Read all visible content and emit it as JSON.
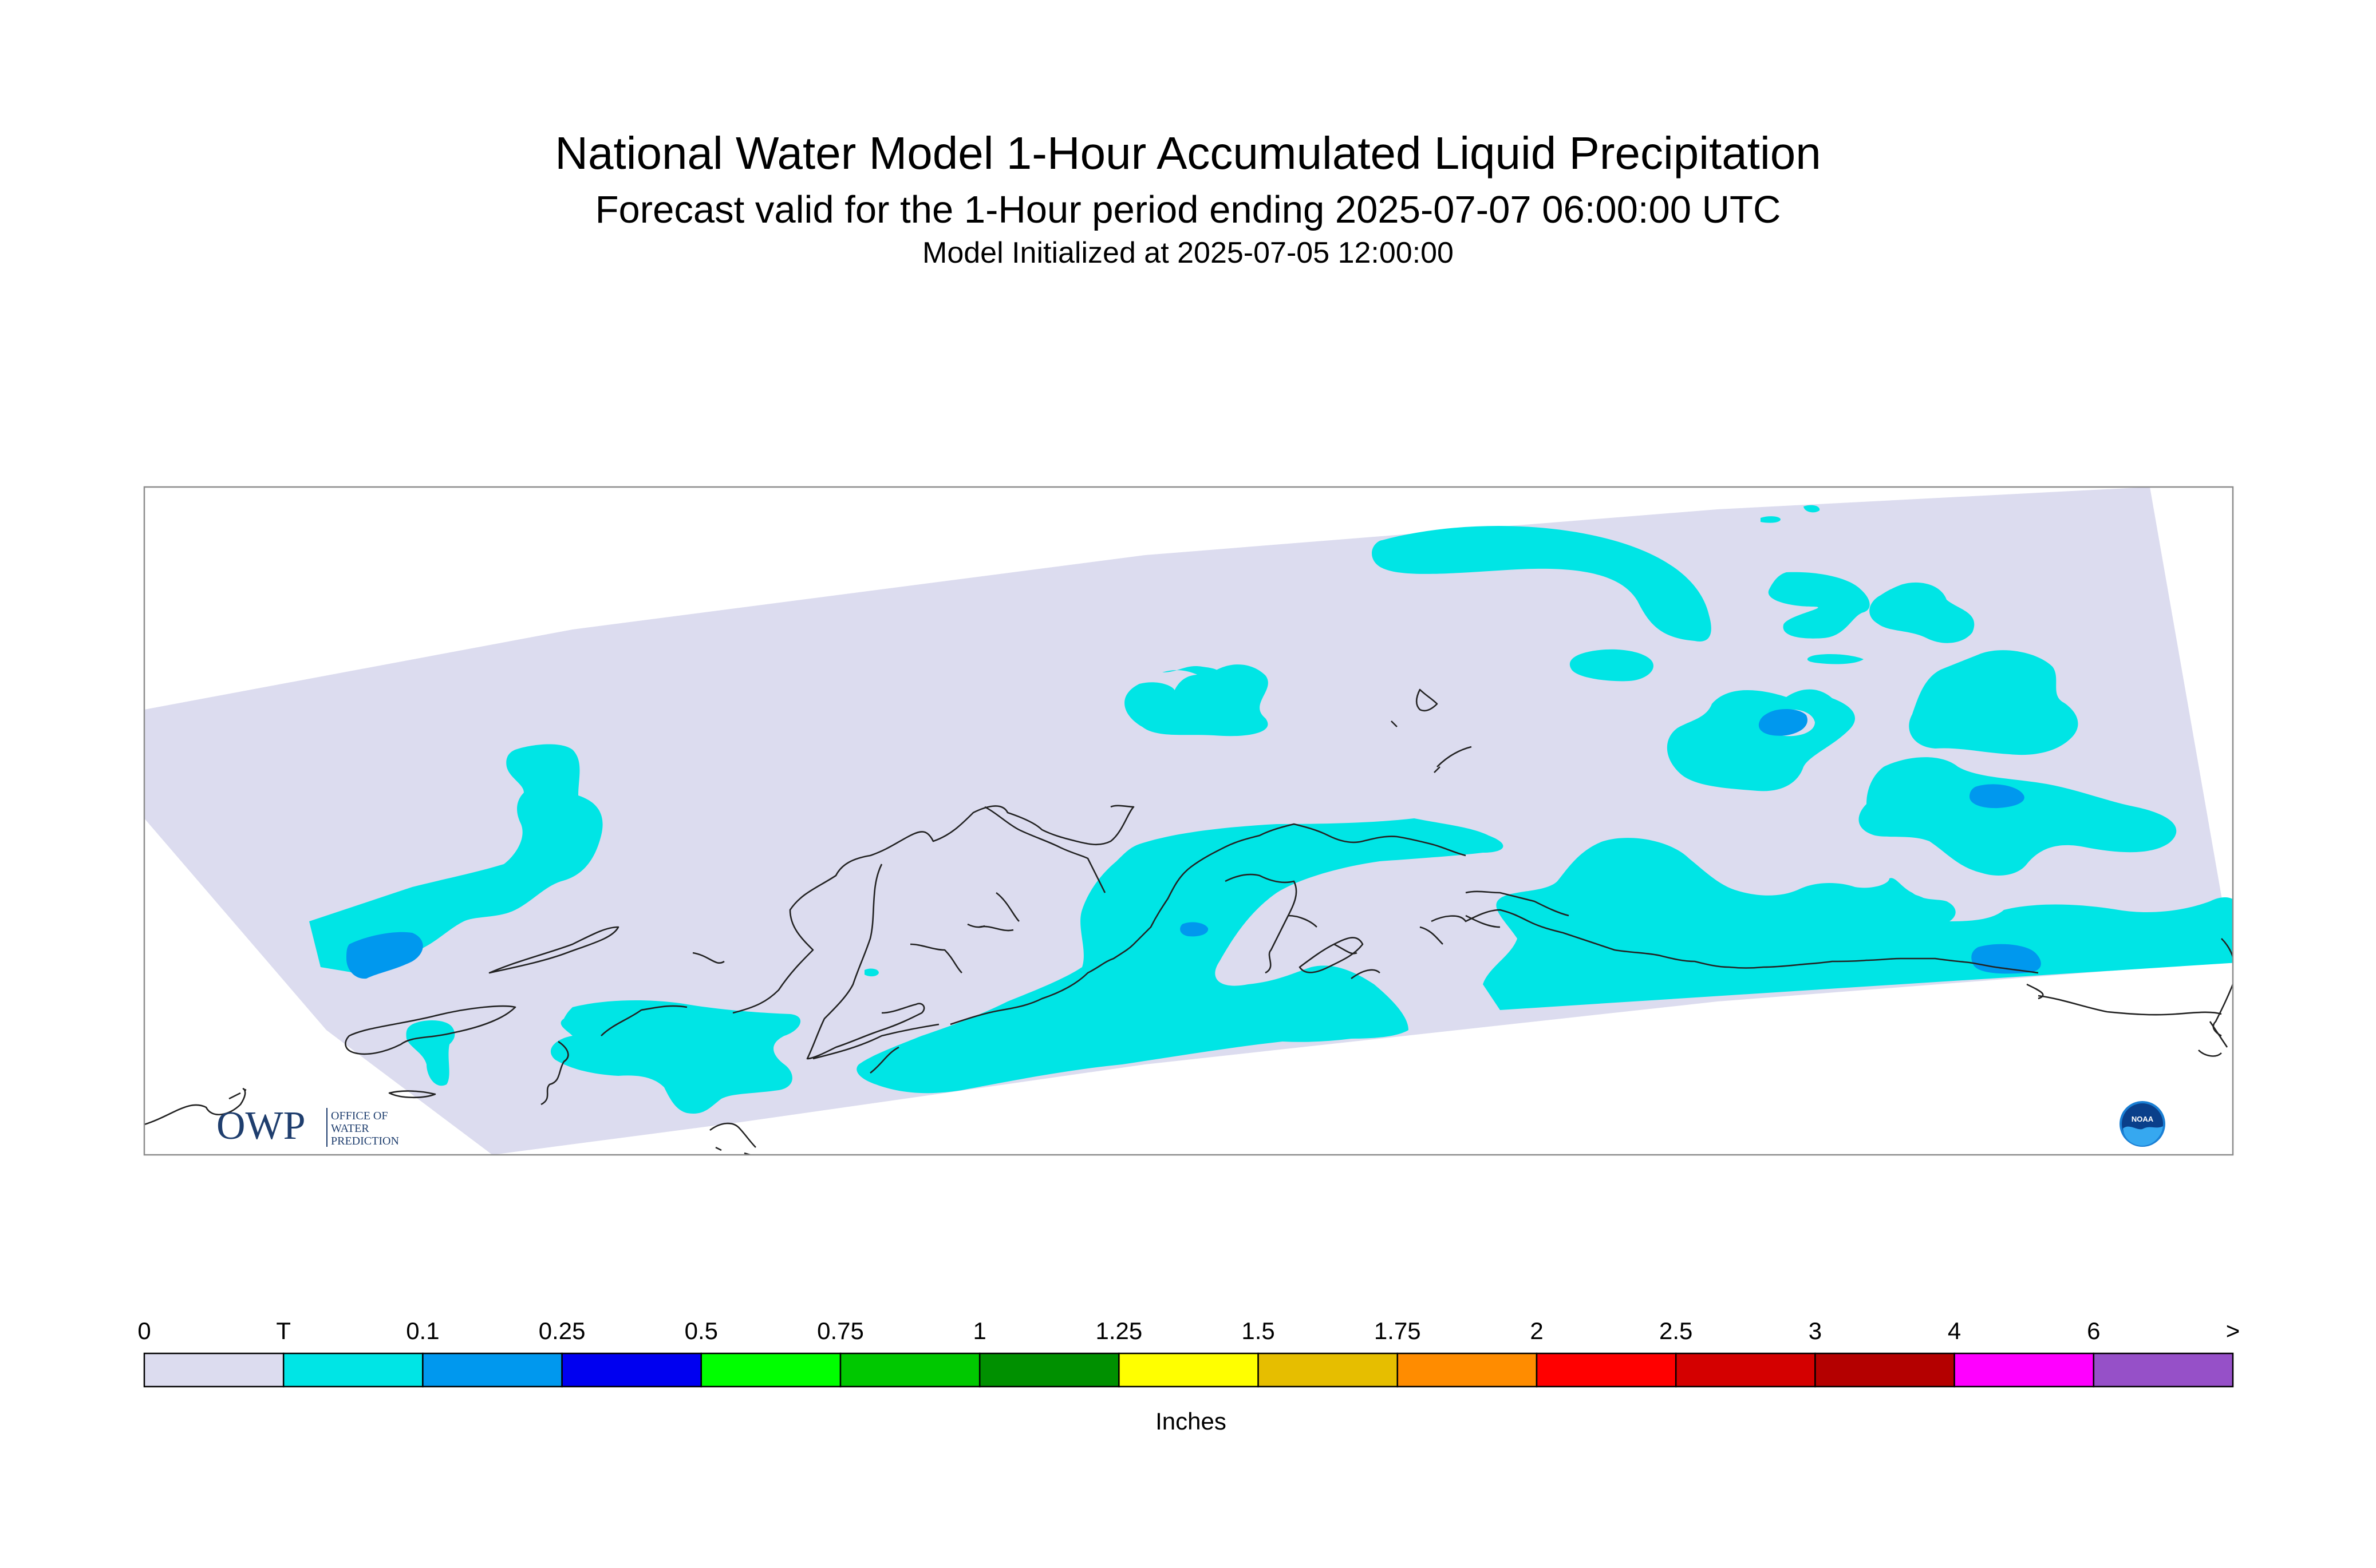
{
  "header": {
    "title": "National Water Model 1-Hour Accumulated Liquid Precipitation",
    "subtitle": "Forecast valid for the 1-Hour period ending 2025-07-07 06:00:00 UTC",
    "init": "Model Initialized at 2025-07-05 12:00:00"
  },
  "legend": {
    "units": "Inches",
    "ticks": [
      "0",
      "T",
      "0.1",
      "0.25",
      "0.5",
      "0.75",
      "1",
      "1.25",
      "1.5",
      "1.75",
      "2",
      "2.5",
      "3",
      "4",
      "6",
      ">"
    ],
    "colors": [
      "#dcdcef",
      "#00e5e5",
      "#0098ee",
      "#0000f0",
      "#00ff00",
      "#00c800",
      "#009000",
      "#ffff00",
      "#e6be00",
      "#ff8c00",
      "#ff0000",
      "#d40000",
      "#b40000",
      "#ff00ff",
      "#9650c8"
    ]
  },
  "logos": {
    "owp_mark": "OWP",
    "owp_text": [
      "OFFICE OF",
      "WATER",
      "PREDICTION"
    ],
    "noaa_text": "NOAA"
  },
  "map_colors": {
    "domain_fill": "#dcdcef",
    "trace": "#00e5e5",
    "light": "#0098ee",
    "coast": "#222222"
  }
}
